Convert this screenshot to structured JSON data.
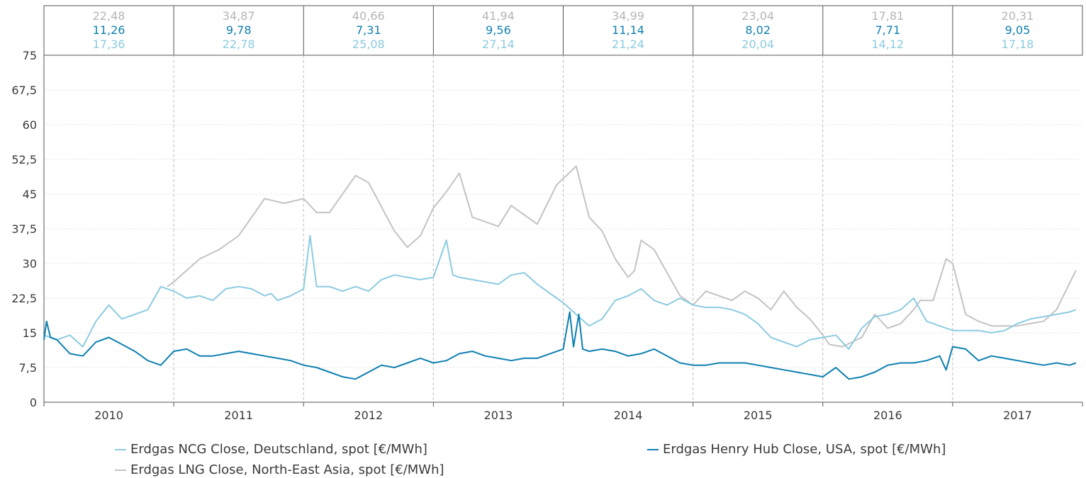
{
  "chart_data": {
    "type": "line",
    "ylim": [
      0,
      75
    ],
    "y_ticks": [
      "0",
      "7,5",
      "15",
      "22,5",
      "30",
      "37,5",
      "45",
      "52,5",
      "60",
      "67,5",
      "75"
    ],
    "y_tick_values": [
      0,
      7.5,
      15,
      22.5,
      30,
      37.5,
      45,
      52.5,
      60,
      67.5,
      75
    ],
    "years": [
      "2010",
      "2011",
      "2012",
      "2013",
      "2014",
      "2015",
      "2016",
      "2017"
    ],
    "grid": true,
    "legend_position": "bottom",
    "colors": {
      "ncg": "#8ccbe0",
      "hh": "#0e7fb0",
      "lng": "#c3c3c3"
    },
    "annual_averages": {
      "lng": [
        "22,48",
        "34,87",
        "40,66",
        "41,94",
        "34,99",
        "23,04",
        "17,81",
        "20,31"
      ],
      "hh": [
        "11,26",
        "9,78",
        "7,31",
        "9,56",
        "11,14",
        "8,02",
        "7,71",
        "9,05"
      ],
      "ncg": [
        "17,36",
        "22,78",
        "25,08",
        "27,14",
        "21,24",
        "20,04",
        "14,12",
        "17,18"
      ]
    },
    "series": [
      {
        "key": "ncg",
        "name": "Erdgas NCG Close, Deutschland, spot [€/MWh]",
        "x": [
          2010.0,
          2010.05,
          2010.1,
          2010.2,
          2010.3,
          2010.4,
          2010.5,
          2010.6,
          2010.7,
          2010.8,
          2010.9,
          2011.0,
          2011.1,
          2011.2,
          2011.3,
          2011.4,
          2011.5,
          2011.6,
          2011.7,
          2011.75,
          2011.8,
          2011.9,
          2012.0,
          2012.05,
          2012.1,
          2012.2,
          2012.3,
          2012.4,
          2012.5,
          2012.6,
          2012.7,
          2012.8,
          2012.9,
          2013.0,
          2013.1,
          2013.15,
          2013.2,
          2013.3,
          2013.4,
          2013.5,
          2013.6,
          2013.7,
          2013.8,
          2013.9,
          2014.0,
          2014.1,
          2014.2,
          2014.3,
          2014.4,
          2014.5,
          2014.6,
          2014.7,
          2014.8,
          2014.9,
          2015.0,
          2015.1,
          2015.2,
          2015.3,
          2015.4,
          2015.5,
          2015.6,
          2015.7,
          2015.8,
          2015.9,
          2016.0,
          2016.1,
          2016.2,
          2016.3,
          2016.4,
          2016.5,
          2016.6,
          2016.7,
          2016.8,
          2016.9,
          2017.0,
          2017.1,
          2017.2,
          2017.3,
          2017.4,
          2017.5,
          2017.6,
          2017.7,
          2017.8,
          2017.9,
          2017.95
        ],
        "y": [
          14.5,
          14.0,
          13.5,
          14.5,
          12.0,
          17.5,
          21.0,
          18.0,
          19.0,
          20.0,
          25.0,
          24.0,
          22.5,
          23.0,
          22.0,
          24.5,
          25.0,
          24.5,
          23.0,
          23.5,
          22.0,
          23.0,
          24.5,
          36.0,
          25.0,
          25.0,
          24.0,
          25.0,
          24.0,
          26.5,
          27.5,
          27.0,
          26.5,
          27.0,
          35.0,
          27.5,
          27.0,
          26.5,
          26.0,
          25.5,
          27.5,
          28.0,
          25.5,
          23.5,
          21.5,
          19.0,
          16.5,
          18.0,
          22.0,
          23.0,
          24.5,
          22.0,
          21.0,
          22.5,
          21.0,
          20.5,
          20.5,
          20.0,
          19.0,
          17.0,
          14.0,
          13.0,
          12.0,
          13.5,
          14.0,
          14.5,
          11.5,
          16.0,
          18.5,
          19.0,
          20.0,
          22.5,
          17.5,
          16.5,
          15.5,
          15.5,
          15.5,
          15.0,
          15.5,
          17.0,
          18.0,
          18.5,
          19.0,
          19.5,
          20.0
        ]
      },
      {
        "key": "lng",
        "name": "Erdgas LNG Close, North-East Asia, spot [€/MWh]",
        "x": [
          2010.95,
          2011.0,
          2011.2,
          2011.35,
          2011.5,
          2011.7,
          2011.85,
          2012.0,
          2012.1,
          2012.2,
          2012.4,
          2012.5,
          2012.7,
          2012.8,
          2012.9,
          2013.0,
          2013.1,
          2013.2,
          2013.3,
          2013.5,
          2013.6,
          2013.8,
          2013.95,
          2014.1,
          2014.2,
          2014.3,
          2014.4,
          2014.5,
          2014.55,
          2014.6,
          2014.7,
          2014.8,
          2014.9,
          2015.0,
          2015.1,
          2015.2,
          2015.3,
          2015.4,
          2015.5,
          2015.6,
          2015.7,
          2015.8,
          2015.9,
          2016.0,
          2016.05,
          2016.15,
          2016.3,
          2016.4,
          2016.5,
          2016.6,
          2016.7,
          2016.75,
          2016.85,
          2016.95,
          2017.0,
          2017.1,
          2017.2,
          2017.3,
          2017.4,
          2017.5,
          2017.6,
          2017.7,
          2017.8,
          2017.95
        ],
        "y": [
          25.0,
          26.0,
          31.0,
          33.0,
          36.0,
          44.0,
          43.0,
          44.0,
          41.0,
          41.0,
          49.0,
          47.5,
          37.0,
          33.5,
          36.0,
          42.0,
          45.5,
          49.5,
          40.0,
          38.0,
          42.5,
          38.5,
          47.0,
          51.0,
          40.0,
          37.0,
          31.0,
          27.0,
          28.5,
          35.0,
          33.0,
          28.0,
          23.0,
          21.0,
          24.0,
          23.0,
          22.0,
          24.0,
          22.5,
          20.0,
          24.0,
          20.5,
          18.0,
          14.5,
          12.5,
          12.0,
          14.0,
          19.0,
          16.0,
          17.0,
          20.0,
          22.0,
          22.0,
          31.0,
          30.0,
          19.0,
          17.5,
          16.5,
          16.5,
          16.5,
          17.0,
          17.5,
          20.0,
          28.5
        ]
      },
      {
        "key": "hh",
        "name": "Erdgas Henry Hub Close, USA, spot [€/MWh]",
        "x": [
          2010.0,
          2010.02,
          2010.05,
          2010.1,
          2010.2,
          2010.3,
          2010.4,
          2010.5,
          2010.6,
          2010.7,
          2010.8,
          2010.9,
          2011.0,
          2011.1,
          2011.2,
          2011.3,
          2011.4,
          2011.5,
          2011.6,
          2011.7,
          2011.8,
          2011.9,
          2012.0,
          2012.1,
          2012.2,
          2012.3,
          2012.4,
          2012.5,
          2012.6,
          2012.7,
          2012.8,
          2012.9,
          2013.0,
          2013.1,
          2013.2,
          2013.3,
          2013.4,
          2013.5,
          2013.6,
          2013.7,
          2013.8,
          2013.9,
          2014.0,
          2014.05,
          2014.08,
          2014.12,
          2014.15,
          2014.2,
          2014.3,
          2014.4,
          2014.5,
          2014.6,
          2014.7,
          2014.8,
          2014.9,
          2015.0,
          2015.1,
          2015.2,
          2015.3,
          2015.4,
          2015.5,
          2015.6,
          2015.7,
          2015.8,
          2015.9,
          2016.0,
          2016.1,
          2016.2,
          2016.3,
          2016.4,
          2016.5,
          2016.6,
          2016.7,
          2016.8,
          2016.9,
          2016.95,
          2017.0,
          2017.1,
          2017.2,
          2017.3,
          2017.4,
          2017.5,
          2017.6,
          2017.7,
          2017.8,
          2017.9,
          2017.95
        ],
        "y": [
          13.5,
          17.5,
          14.0,
          13.5,
          10.5,
          10.0,
          13.0,
          14.0,
          12.5,
          11.0,
          9.0,
          8.0,
          11.0,
          11.5,
          10.0,
          10.0,
          10.5,
          11.0,
          10.5,
          10.0,
          9.5,
          9.0,
          8.0,
          7.5,
          6.5,
          5.5,
          5.0,
          6.5,
          8.0,
          7.5,
          8.5,
          9.5,
          8.5,
          9.0,
          10.5,
          11.0,
          10.0,
          9.5,
          9.0,
          9.5,
          9.5,
          10.5,
          11.5,
          19.5,
          12.0,
          19.0,
          11.5,
          11.0,
          11.5,
          11.0,
          10.0,
          10.5,
          11.5,
          10.0,
          8.5,
          8.0,
          8.0,
          8.5,
          8.5,
          8.5,
          8.0,
          7.5,
          7.0,
          6.5,
          6.0,
          5.5,
          7.5,
          5.0,
          5.5,
          6.5,
          8.0,
          8.5,
          8.5,
          9.0,
          10.0,
          7.0,
          12.0,
          11.5,
          9.0,
          10.0,
          9.5,
          9.0,
          8.5,
          8.0,
          8.5,
          8.0,
          8.5
        ]
      }
    ]
  }
}
